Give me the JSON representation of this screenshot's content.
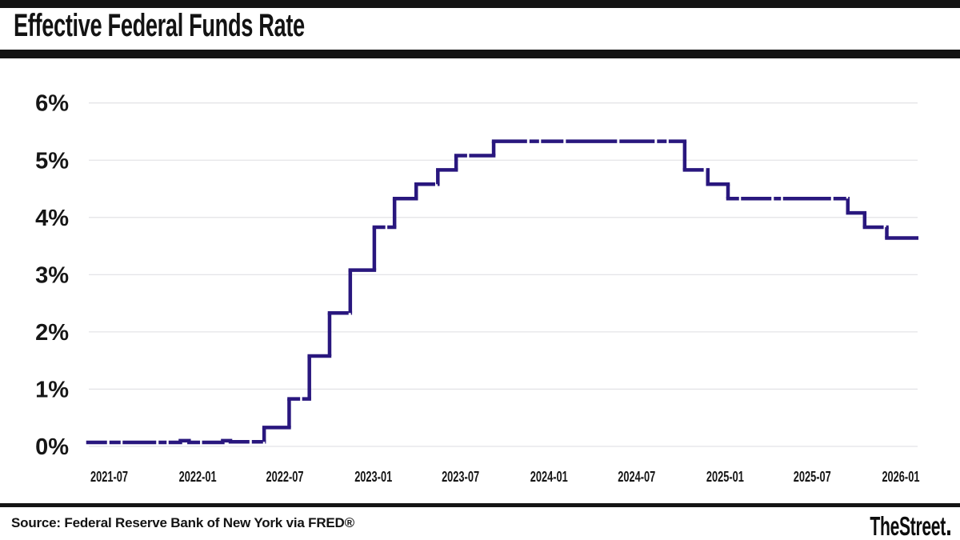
{
  "header": {
    "title": "Effective Federal Funds Rate"
  },
  "footer": {
    "source": "Source: Federal Reserve Bank of New York via FRED®",
    "logo": "TheStreet"
  },
  "chart_data": {
    "type": "line",
    "step": true,
    "title": "Effective Federal Funds Rate",
    "xlabel": "",
    "ylabel": "",
    "ylim": [
      0,
      6
    ],
    "grid": true,
    "legend": false,
    "line_color": "#29177E",
    "grid_color": "#E4E4E7",
    "y_ticks": [
      {
        "value": 0,
        "label": "0%"
      },
      {
        "value": 1,
        "label": "1%"
      },
      {
        "value": 2,
        "label": "2%"
      },
      {
        "value": 3,
        "label": "3%"
      },
      {
        "value": 4,
        "label": "4%"
      },
      {
        "value": 5,
        "label": "5%"
      },
      {
        "value": 6,
        "label": "6%"
      }
    ],
    "x_ticks": [
      {
        "date": "2021-07-01",
        "label": "2021-07"
      },
      {
        "date": "2022-01-01",
        "label": "2022-01"
      },
      {
        "date": "2022-07-01",
        "label": "2022-07"
      },
      {
        "date": "2023-01-01",
        "label": "2023-01"
      },
      {
        "date": "2023-07-01",
        "label": "2023-07"
      },
      {
        "date": "2024-01-01",
        "label": "2024-01"
      },
      {
        "date": "2024-07-01",
        "label": "2024-07"
      },
      {
        "date": "2025-01-01",
        "label": "2025-01"
      },
      {
        "date": "2025-07-01",
        "label": "2025-07"
      },
      {
        "date": "2026-01-01",
        "label": "2026-01"
      }
    ],
    "x_domain": [
      "2021-05-18",
      "2026-02-05"
    ],
    "series": [
      {
        "name": "Effective Federal Funds Rate (%)",
        "end_date": "2026-02-03",
        "steps": [
          {
            "from": "2021-05-18",
            "rate": 0.07
          },
          {
            "from": "2021-11-26",
            "rate": 0.1
          },
          {
            "from": "2021-12-14",
            "rate": 0.07
          },
          {
            "from": "2022-02-22",
            "rate": 0.1
          },
          {
            "from": "2022-03-10",
            "rate": 0.08
          },
          {
            "from": "2022-05-19",
            "rate": 0.33
          },
          {
            "from": "2022-07-10",
            "rate": 0.83
          },
          {
            "from": "2022-08-21",
            "rate": 1.58
          },
          {
            "from": "2022-10-02",
            "rate": 2.33
          },
          {
            "from": "2022-11-14",
            "rate": 3.08
          },
          {
            "from": "2023-01-03",
            "rate": 3.83
          },
          {
            "from": "2023-02-14",
            "rate": 4.33
          },
          {
            "from": "2023-03-31",
            "rate": 4.58
          },
          {
            "from": "2023-05-15",
            "rate": 4.83
          },
          {
            "from": "2023-06-22",
            "rate": 5.08
          },
          {
            "from": "2023-09-08",
            "rate": 5.33
          },
          {
            "from": "2024-10-09",
            "rate": 4.83
          },
          {
            "from": "2024-11-26",
            "rate": 4.58
          },
          {
            "from": "2025-01-07",
            "rate": 4.33
          },
          {
            "from": "2025-09-13",
            "rate": 4.08
          },
          {
            "from": "2025-10-18",
            "rate": 3.83
          },
          {
            "from": "2025-12-03",
            "rate": 3.64
          }
        ]
      }
    ]
  }
}
